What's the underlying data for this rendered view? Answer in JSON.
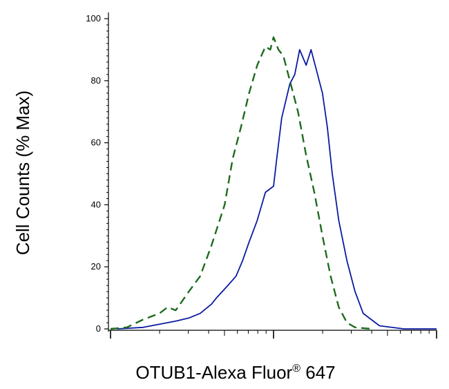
{
  "chart_data": {
    "type": "line",
    "xlabel": {
      "main": "OTUB1-Alexa Fluor",
      "sup": "®",
      "tail": " 647"
    },
    "ylabel": "Cell Counts (% Max)",
    "x_scale": "log",
    "xlim": [
      1,
      3
    ],
    "ylim": [
      0,
      100
    ],
    "y_ticks": [
      "0",
      "20",
      "40",
      "60",
      "80",
      "100"
    ],
    "grid": false,
    "legend": "none",
    "series": [
      {
        "color": "#0a1aa0",
        "style": "solid",
        "x": [
          1.04,
          1.2,
          1.3,
          1.4,
          1.48,
          1.55,
          1.62,
          1.65,
          1.72,
          1.77,
          1.81,
          1.85,
          1.9,
          1.95,
          2.0,
          2.02,
          2.05,
          2.1,
          2.13,
          2.16,
          2.2,
          2.23,
          2.26,
          2.3,
          2.33,
          2.36,
          2.4,
          2.45,
          2.5,
          2.55,
          2.65,
          2.8,
          3.0
        ],
        "y": [
          0,
          0.5,
          1.5,
          2.5,
          3.5,
          5,
          8,
          10,
          14,
          17,
          22,
          28,
          35,
          44,
          46,
          55,
          68,
          79,
          82,
          90,
          85,
          90,
          84,
          76,
          65,
          50,
          35,
          22,
          12,
          5,
          1,
          0,
          0
        ]
      },
      {
        "color": "#1d6b1d",
        "style": "dashed",
        "x": [
          1.0,
          1.1,
          1.2,
          1.3,
          1.35,
          1.4,
          1.48,
          1.55,
          1.62,
          1.7,
          1.75,
          1.8,
          1.85,
          1.9,
          1.95,
          1.98,
          2.0,
          2.03,
          2.06,
          2.1,
          2.15,
          2.2,
          2.25,
          2.3,
          2.35,
          2.4,
          2.45,
          2.5,
          2.6
        ],
        "y": [
          0,
          0.5,
          3,
          5,
          7,
          6,
          12,
          17,
          27,
          40,
          55,
          65,
          76,
          85,
          91,
          90,
          94,
          90,
          88,
          80,
          70,
          56,
          44,
          30,
          17,
          7,
          2,
          0.5,
          0
        ]
      }
    ]
  }
}
